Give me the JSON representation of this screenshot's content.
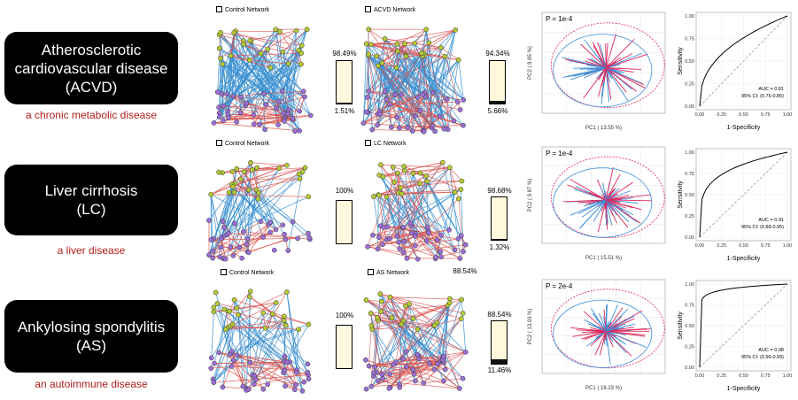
{
  "rows": [
    {
      "disease_lines": [
        "Atherosclerotic",
        "cardiovascular disease",
        "(ACVD)"
      ],
      "description": "a chronic metabolic disease",
      "control_title": "Control Network",
      "disease_title": "ACVD Network",
      "control_pct_top": "98.49%",
      "control_pct_bottom": "1.51%",
      "control_fraction": 0.0151,
      "disease_pct_top": "94.34%",
      "disease_pct_bottom": "5.66%",
      "disease_fraction": 0.0566,
      "pca_p": "P = 1e-4",
      "pca_xlabel": "PC1 ( 13.55 %)",
      "pca_ylabel": "PC2 ( 8.85 %)",
      "roc_auc": "AUC = 0.81",
      "roc_ci": "95% CI: (0.76-0.85)"
    },
    {
      "disease_lines": [
        "Liver cirrhosis",
        "(LC)"
      ],
      "description": "a liver disease",
      "control_title": "Control Network",
      "disease_title": "LC Network",
      "control_pct_top": "100%",
      "control_pct_bottom": "",
      "control_fraction": 0.0,
      "disease_pct_top": "98.68%",
      "disease_pct_bottom": "1.32%",
      "disease_fraction": 0.0132,
      "pca_p": "P = 1e-4",
      "pca_xlabel": "PC1 ( 15.51 %)",
      "pca_ylabel": "PC2 ( 9.87 %)",
      "roc_auc": "AUC = 0.91",
      "roc_ci": "95% CI: (0.88-0.95)"
    },
    {
      "disease_lines": [
        "Ankylosing spondylitis",
        "(AS)"
      ],
      "description": "an autoimmune disease",
      "control_title": "Control Network",
      "disease_title": "AS Network",
      "disease_title_extra": "88.54%",
      "control_pct_top": "100%",
      "control_pct_bottom": "",
      "control_fraction": 0.0,
      "disease_pct_top": "88.54%",
      "disease_pct_bottom": "11.46%",
      "disease_fraction": 0.1146,
      "pca_p": "P = 2e-4",
      "pca_xlabel": "PC1 ( 16.23 %)",
      "pca_ylabel": "PC2 ( 13.93 %)",
      "roc_auc": "AUC = 0.98",
      "roc_ci": "95% CI: (0.96-0.99)"
    }
  ],
  "roc_axes": {
    "xlabel": "1-Specificity",
    "ylabel": "Sensitivity",
    "ticks": [
      "0.00",
      "0.25",
      "0.50",
      "0.75",
      "1.00"
    ]
  },
  "colors": {
    "disease_red": "#b31b1b",
    "node_green": "#b5c934",
    "node_purple": "#9b6fd6",
    "edge_red": "#d9534f",
    "edge_blue": "#3a8fd0",
    "pca_red": "#e0245a",
    "pca_blue": "#3e8ed8"
  }
}
